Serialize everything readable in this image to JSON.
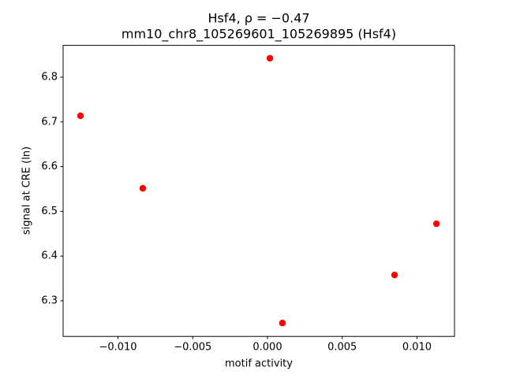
{
  "chart_data": {
    "type": "scatter",
    "title": "Hsf4, ρ = −0.47",
    "subtitle": "mm10_chr8_105269601_105269895 (Hsf4)",
    "x_label": "motif activity",
    "y_label": "signal at CRE (ln)",
    "color": "#ff0000",
    "x": [
      -0.01251,
      -0.00834,
      0.00016,
      0.001,
      0.0085,
      0.0113
    ],
    "values": [
      6.7137,
      6.5515,
      6.8423,
      6.2502,
      6.3577,
      6.4722
    ],
    "xlim": [
      -0.01367,
      0.01251
    ],
    "ylim": [
      6.2203,
      6.8712
    ],
    "xticks": [
      {
        "value": -0.01,
        "label": "−0.010"
      },
      {
        "value": -0.005,
        "label": "−0.005"
      },
      {
        "value": 0,
        "label": "0.000"
      },
      0.005,
      {
        "value": 0.01,
        "label": "0.010"
      }
    ],
    "yticks": [
      6.3,
      6.4,
      6.5,
      6.6,
      6.7,
      6.8
    ]
  }
}
